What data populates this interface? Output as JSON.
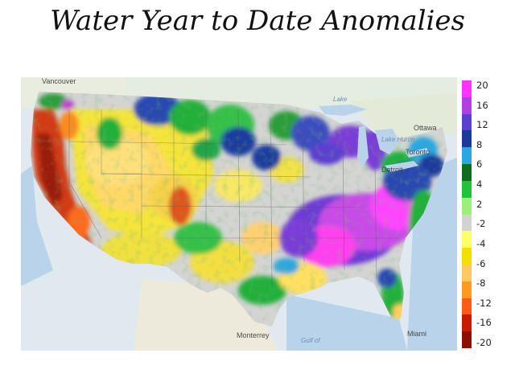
{
  "title": "Water Year to Date Anomalies",
  "map": {
    "labels": {
      "vancouver": "Vancouver",
      "ottawa": "Ottawa",
      "toronto": "Toronto",
      "detroit": "Detroit",
      "monterrey": "Monterrey",
      "miami": "Miami",
      "lake_superior": "Lake",
      "lake_huron": "Lake Huron",
      "gulf": "Gulf of"
    }
  },
  "legend": {
    "ticks": [
      "20",
      "16",
      "12",
      "8",
      "6",
      "4",
      "2",
      "-2",
      "-4",
      "-6",
      "-8",
      "-12",
      "-16",
      "-20"
    ],
    "colors": [
      "#ff33ff",
      "#b040e0",
      "#5b3fd0",
      "#1a3a9a",
      "#2aa7e0",
      "#0f6e1e",
      "#22c23a",
      "#9af07a",
      "#d2d2d2",
      "#ffff66",
      "#f2e000",
      "#ffc860",
      "#ff9a20",
      "#ff5a1a",
      "#c81a00",
      "#8a1000"
    ]
  }
}
